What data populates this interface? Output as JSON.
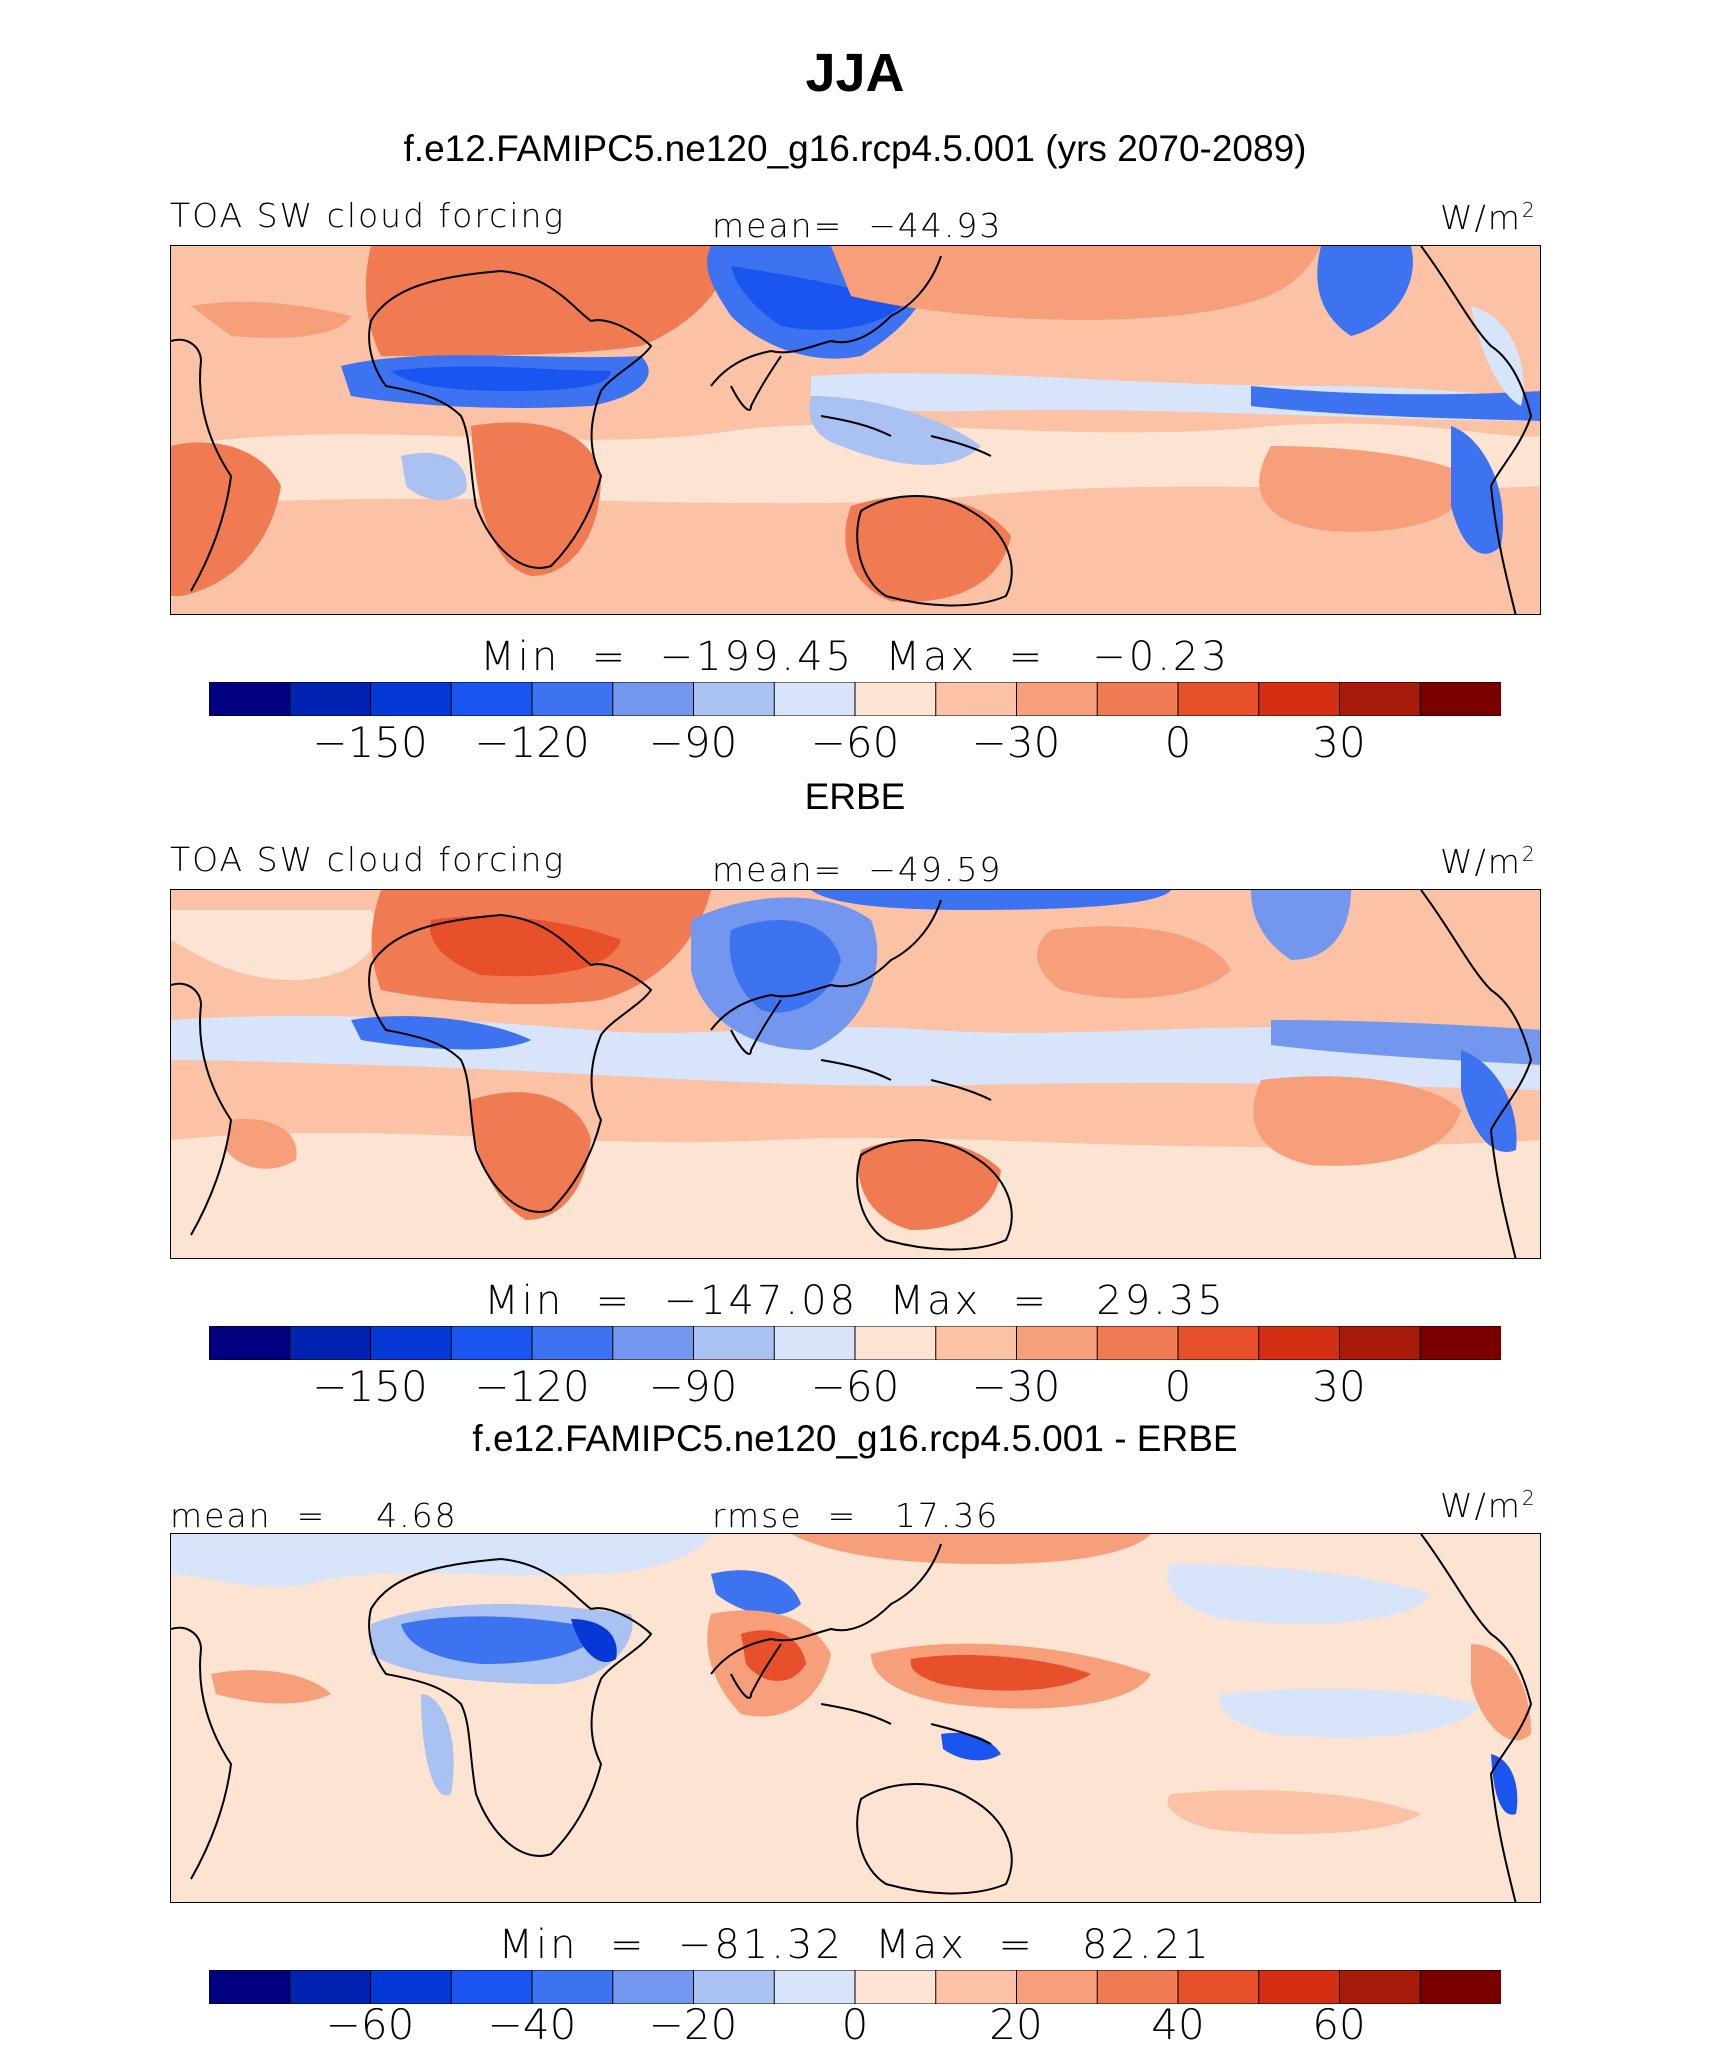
{
  "title": "JJA",
  "subtitle": "f.e12.FAMIPC5.ne120_g16.rcp4.5.001 (yrs 2070-2089)",
  "panels": [
    {
      "name": "model",
      "left_label": "TOA SW cloud forcing",
      "center_label": "mean=  −44.93",
      "unit": "W/m",
      "unit_exp": "2",
      "minmax": "Min  =  −199.45  Max  =   −0.23"
    },
    {
      "name": "obs",
      "heading": "ERBE",
      "left_label": "TOA SW cloud forcing",
      "center_label": "mean=  −49.59",
      "unit": "W/m",
      "unit_exp": "2",
      "minmax": "Min  =  −147.08  Max  =   29.35"
    },
    {
      "name": "diff",
      "heading": "f.e12.FAMIPC5.ne120_g16.rcp4.5.001 - ERBE",
      "left_label": "mean  =    4.68",
      "center_label": "rmse  =   17.36",
      "unit": "W/m",
      "unit_exp": "2",
      "minmax": "Min  =  −81.32  Max  =   82.21"
    }
  ],
  "chart_data": [
    {
      "type": "heatmap",
      "title": "TOA SW cloud forcing",
      "mean": -44.93,
      "min": -199.45,
      "max": -0.23,
      "units": "W/m2",
      "colorbar_ticks": [
        "−150",
        "−120",
        "−90",
        "−60",
        "−30",
        "0",
        "30"
      ],
      "colorbar_levels": [
        -165,
        -150,
        -135,
        -120,
        -105,
        -90,
        -75,
        -60,
        -45,
        -30,
        -15,
        0,
        15,
        30,
        45
      ]
    },
    {
      "type": "heatmap",
      "title": "TOA SW cloud forcing (ERBE)",
      "mean": -49.59,
      "min": -147.08,
      "max": 29.35,
      "units": "W/m2",
      "colorbar_ticks": [
        "−150",
        "−120",
        "−90",
        "−60",
        "−30",
        "0",
        "30"
      ],
      "colorbar_levels": [
        -165,
        -150,
        -135,
        -120,
        -105,
        -90,
        -75,
        -60,
        -45,
        -30,
        -15,
        0,
        15,
        30,
        45
      ]
    },
    {
      "type": "heatmap",
      "title": "f.e12.FAMIPC5.ne120_g16.rcp4.5.001 - ERBE",
      "mean": 4.68,
      "rmse": 17.36,
      "min": -81.32,
      "max": 82.21,
      "units": "W/m2",
      "colorbar_ticks": [
        "−60",
        "−40",
        "−20",
        "0",
        "20",
        "40",
        "60"
      ],
      "colorbar_levels": [
        -70,
        -60,
        -50,
        -40,
        -30,
        -20,
        -10,
        0,
        10,
        20,
        30,
        40,
        50,
        60,
        70
      ]
    }
  ],
  "colors": {
    "palette": [
      "#000080",
      "#0022b0",
      "#0638d6",
      "#1a55f0",
      "#3d72f0",
      "#7397ee",
      "#a9c2f2",
      "#d7e4fa",
      "#fde4d2",
      "#fbc2a6",
      "#f79f7b",
      "#f07a52",
      "#e8502c",
      "#d42f12",
      "#a81a0a",
      "#7a0000"
    ]
  }
}
